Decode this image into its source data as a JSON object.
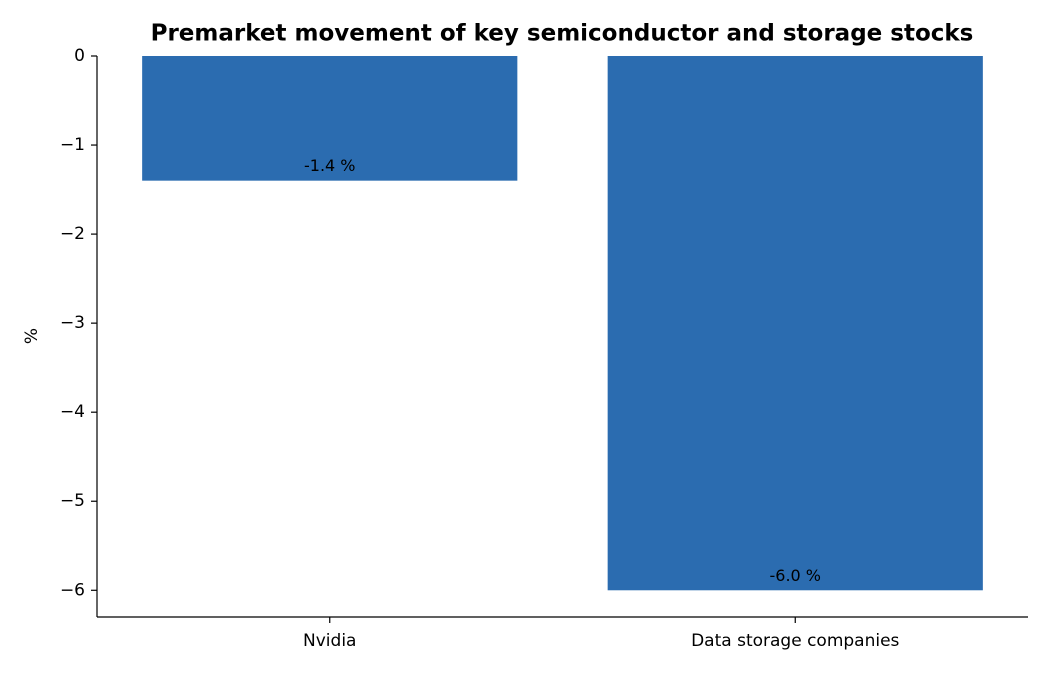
{
  "chart_data": {
    "type": "bar",
    "title": "Premarket movement of key semiconductor and storage stocks",
    "y_label": "%",
    "categories": [
      "Nvidia",
      "Data storage companies"
    ],
    "values": [
      -1.4,
      -6.0
    ],
    "value_labels": [
      "-1.4 %",
      "-6.0 %"
    ],
    "color": "#2b6cb0",
    "ylim": [
      -6.3,
      0
    ],
    "yticks": [
      0,
      {
        "value": -1,
        "label": "−1"
      },
      {
        "value": -2,
        "label": "−2"
      },
      {
        "value": -3,
        "label": "−3"
      },
      {
        "value": -4,
        "label": "−4"
      },
      {
        "value": -5,
        "label": "−5"
      },
      {
        "value": -6,
        "label": "−6"
      }
    ]
  }
}
